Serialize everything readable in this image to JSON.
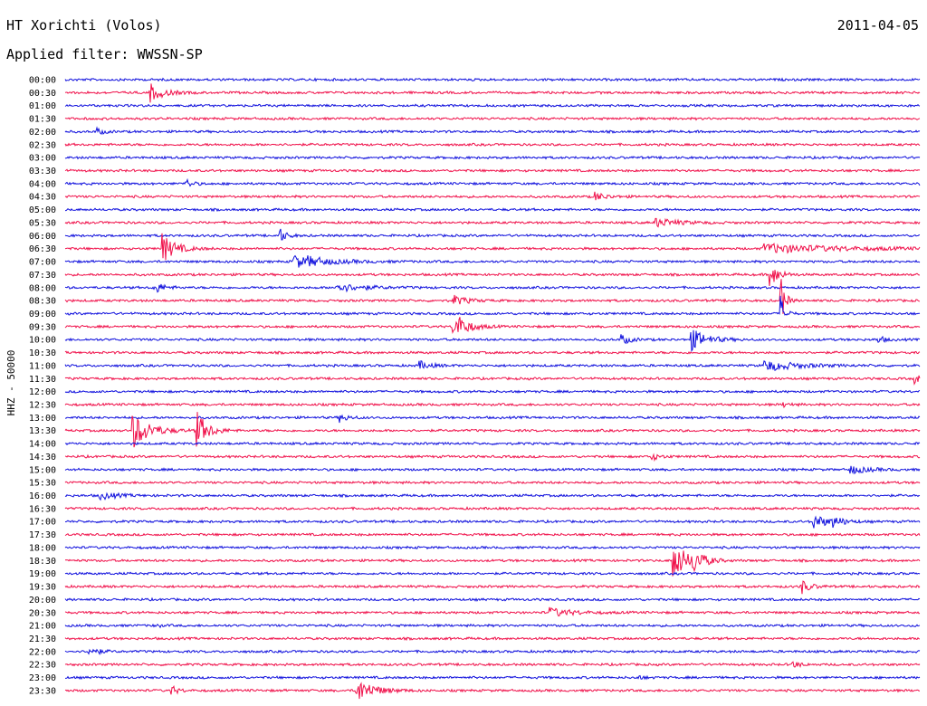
{
  "header": {
    "station": "HT Xorichti (Volos)",
    "date": "2011-04-05",
    "filter_text": "Applied filter: WWSSN-SP"
  },
  "chart_data": {
    "type": "line",
    "title": "HT Xorichti (Volos)",
    "ylabel": "HHZ - 50000",
    "row_labels": [
      "00:00",
      "00:30",
      "01:00",
      "01:30",
      "02:00",
      "02:30",
      "03:00",
      "03:30",
      "04:00",
      "04:30",
      "05:00",
      "05:30",
      "06:00",
      "06:30",
      "07:00",
      "07:30",
      "08:00",
      "08:30",
      "09:00",
      "09:30",
      "10:00",
      "10:30",
      "11:00",
      "11:30",
      "12:00",
      "12:30",
      "13:00",
      "13:30",
      "14:00",
      "14:30",
      "15:00",
      "15:30",
      "16:00",
      "16:30",
      "17:00",
      "17:30",
      "18:00",
      "18:30",
      "19:00",
      "19:30",
      "20:00",
      "20:30",
      "21:00",
      "21:30",
      "22:00",
      "22:30",
      "23:00",
      "23:30"
    ],
    "colors": [
      "#1010dd",
      "#f0104a"
    ],
    "x_range_minutes": [
      0,
      30
    ],
    "events": [
      {
        "row": 1,
        "min": 2.9,
        "amp": 12,
        "dur": 0.6
      },
      {
        "row": 4,
        "min": 1.1,
        "amp": 4,
        "dur": 0.3
      },
      {
        "row": 8,
        "min": 4.2,
        "amp": 6,
        "dur": 0.3
      },
      {
        "row": 8,
        "min": 30.0,
        "amp": 4,
        "dur": 0.5
      },
      {
        "row": 9,
        "min": 18.5,
        "amp": 6,
        "dur": 0.5
      },
      {
        "row": 11,
        "min": 20.7,
        "amp": 5,
        "dur": 1.0
      },
      {
        "row": 12,
        "min": 7.5,
        "amp": 9,
        "dur": 0.3
      },
      {
        "row": 13,
        "min": 3.4,
        "amp": 16,
        "dur": 0.6
      },
      {
        "row": 13,
        "min": 24.5,
        "amp": 5,
        "dur": 3.5
      },
      {
        "row": 14,
        "min": 8.0,
        "amp": 10,
        "dur": 0.5
      },
      {
        "row": 14,
        "min": 8.5,
        "amp": 4,
        "dur": 1.6
      },
      {
        "row": 15,
        "min": 24.7,
        "amp": 16,
        "dur": 0.4
      },
      {
        "row": 16,
        "min": 3.1,
        "amp": 8,
        "dur": 0.4
      },
      {
        "row": 16,
        "min": 9.5,
        "amp": 5,
        "dur": 1.2
      },
      {
        "row": 17,
        "min": 25.1,
        "amp": 30,
        "dur": 0.2
      },
      {
        "row": 17,
        "min": 13.6,
        "amp": 6,
        "dur": 0.6
      },
      {
        "row": 18,
        "min": 25.1,
        "amp": 22,
        "dur": 0.2
      },
      {
        "row": 19,
        "min": 13.6,
        "amp": 18,
        "dur": 0.6
      },
      {
        "row": 20,
        "min": 21.9,
        "amp": 14,
        "dur": 0.7
      },
      {
        "row": 20,
        "min": 19.5,
        "amp": 6,
        "dur": 0.4
      },
      {
        "row": 20,
        "min": 28.5,
        "amp": 5,
        "dur": 0.3
      },
      {
        "row": 22,
        "min": 24.5,
        "amp": 6,
        "dur": 1.5
      },
      {
        "row": 22,
        "min": 12.4,
        "amp": 5,
        "dur": 0.5
      },
      {
        "row": 23,
        "min": 29.8,
        "amp": 5,
        "dur": 0.4
      },
      {
        "row": 25,
        "min": 25.2,
        "amp": 3,
        "dur": 0.3
      },
      {
        "row": 26,
        "min": 9.6,
        "amp": 5,
        "dur": 0.4
      },
      {
        "row": 27,
        "min": 2.3,
        "amp": 22,
        "dur": 0.8
      },
      {
        "row": 27,
        "min": 4.6,
        "amp": 22,
        "dur": 0.5
      },
      {
        "row": 29,
        "min": 20.5,
        "amp": 5,
        "dur": 0.4
      },
      {
        "row": 30,
        "min": 27.5,
        "amp": 5,
        "dur": 0.8
      },
      {
        "row": 32,
        "min": 1.2,
        "amp": 4,
        "dur": 0.8
      },
      {
        "row": 34,
        "min": 26.2,
        "amp": 10,
        "dur": 0.6
      },
      {
        "row": 34,
        "min": 26.9,
        "amp": 6,
        "dur": 0.5
      },
      {
        "row": 37,
        "min": 21.3,
        "amp": 26,
        "dur": 0.6
      },
      {
        "row": 37,
        "min": 22.0,
        "amp": 12,
        "dur": 0.5
      },
      {
        "row": 39,
        "min": 25.8,
        "amp": 9,
        "dur": 0.4
      },
      {
        "row": 41,
        "min": 17.0,
        "amp": 5,
        "dur": 1.0
      },
      {
        "row": 42,
        "min": 3.1,
        "amp": 4,
        "dur": 0.2
      },
      {
        "row": 44,
        "min": 0.8,
        "amp": 7,
        "dur": 0.4
      },
      {
        "row": 45,
        "min": 25.5,
        "amp": 5,
        "dur": 0.3
      },
      {
        "row": 46,
        "min": 20.0,
        "amp": 3,
        "dur": 0.3
      },
      {
        "row": 47,
        "min": 3.7,
        "amp": 6,
        "dur": 0.3
      },
      {
        "row": 47,
        "min": 10.2,
        "amp": 14,
        "dur": 0.8
      }
    ]
  }
}
